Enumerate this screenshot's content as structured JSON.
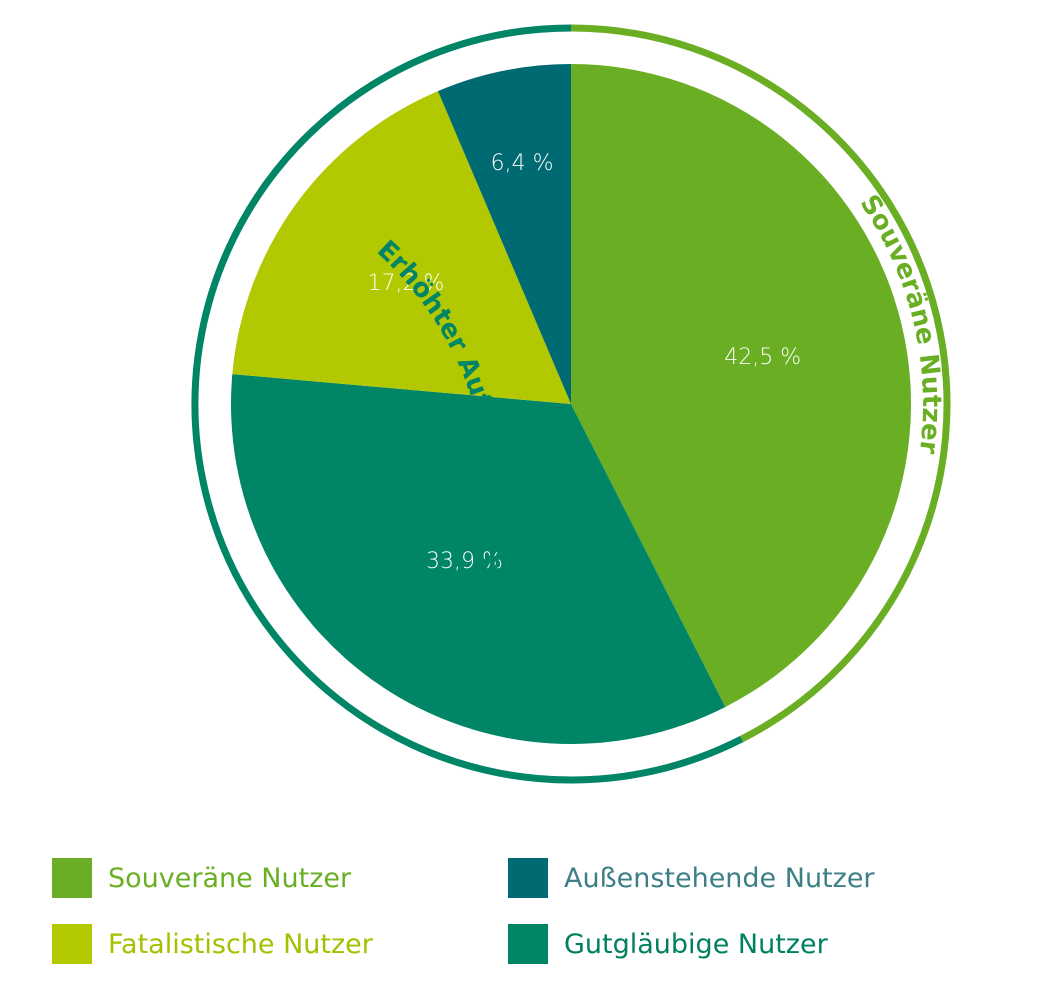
{
  "colors": {
    "souveraen": "#6AAF23",
    "fatalistisch": "#B2C800",
    "aussenstehend": "#006A72",
    "gutglaeubig": "#008566",
    "outer_souveraen": "#6AAF23",
    "outer_aufklaerung": "#008566"
  },
  "chart_data": {
    "type": "pie",
    "title": "",
    "slices": [
      {
        "label": "Souveräne Nutzer",
        "value": 42.5,
        "display": "42,5 %",
        "color": "#6AAF23"
      },
      {
        "label": "Gutgläubige Nutzer",
        "value": 33.9,
        "display": "33,9 %",
        "color": "#008566"
      },
      {
        "label": "Fatalistische Nutzer",
        "value": 17.2,
        "display": "17,2 %",
        "color": "#B2C800"
      },
      {
        "label": "Außenstehende Nutzer",
        "value": 6.4,
        "display": "6,4 %",
        "color": "#006A72"
      }
    ],
    "start": "12 o'clock",
    "direction": "clockwise",
    "outer_ring": [
      {
        "text": "Souveräne Nutzer",
        "covers": [
          "Souveräne Nutzer"
        ],
        "color": "#6AAF23"
      },
      {
        "text": "Erhöhter Aufklärungsbedarf",
        "covers": [
          "Gutgläubige Nutzer",
          "Fatalistische Nutzer",
          "Außenstehende Nutzer"
        ],
        "color": "#008566"
      }
    ],
    "legend": {
      "placement": "bottom",
      "entries": [
        {
          "label": "Souveräne Nutzer",
          "color": "#6AAF23",
          "text_color": "#6AAF23"
        },
        {
          "label": "Außenstehende Nutzer",
          "color": "#006A72",
          "text_color": "#3D7F86"
        },
        {
          "label": "Fatalistische Nutzer",
          "color": "#B2C800",
          "text_color": "#A6C000"
        },
        {
          "label": "Gutgläubige Nutzer",
          "color": "#008566",
          "text_color": "#00805F"
        }
      ]
    }
  }
}
